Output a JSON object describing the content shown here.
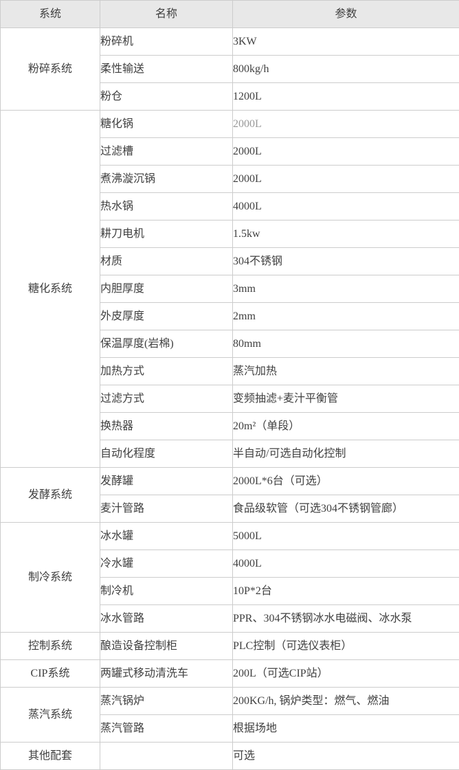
{
  "colors": {
    "header_bg": "#e8e8e8",
    "stripe_bg": "#efefef",
    "row_bg": "#ffffff",
    "border": "#cccccc",
    "text": "#404040",
    "muted_text": "#999999"
  },
  "table": {
    "headers": [
      "系统",
      "名称",
      "参数"
    ],
    "groups": [
      {
        "system": "粉碎系统",
        "cell_bg": "white",
        "rows": [
          {
            "name": "粉碎机",
            "param": "3KW"
          },
          {
            "name": "柔性输送",
            "param": "800kg/h"
          },
          {
            "name": "粉仓",
            "param": "1200L"
          }
        ]
      },
      {
        "system": "糖化系统",
        "cell_bg": "gray",
        "rows": [
          {
            "name": "糖化锅",
            "param": "2000L",
            "muted": true
          },
          {
            "name": "过滤槽",
            "param": "2000L"
          },
          {
            "name": "煮沸漩沉锅",
            "param": "2000L"
          },
          {
            "name": "热水锅",
            "param": "4000L"
          },
          {
            "name": "耕刀电机",
            "param": "1.5kw"
          },
          {
            "name": "材质",
            "param": "304不锈钢"
          },
          {
            "name": "内胆厚度",
            "param": "3mm"
          },
          {
            "name": "外皮厚度",
            "param": "2mm"
          },
          {
            "name": "保温厚度(岩棉)",
            "param": "80mm"
          },
          {
            "name": "加热方式",
            "param": "蒸汽加热"
          },
          {
            "name": "过滤方式",
            "param": "变频抽滤+麦汁平衡管"
          },
          {
            "name": "换热器",
            "param": "20m²（单段）"
          },
          {
            "name": "自动化程度",
            "param": "半自动/可选自动化控制"
          }
        ]
      },
      {
        "system": "发酵系统",
        "cell_bg": "white",
        "rows": [
          {
            "name": "发酵罐",
            "param": "2000L*6台（可选）"
          },
          {
            "name": "麦汁管路",
            "param": "食品级软管（可选304不锈钢管廊）"
          }
        ]
      },
      {
        "system": "制冷系统",
        "cell_bg": "gray",
        "align_top": true,
        "rows": [
          {
            "name": "冰水罐",
            "param": "5000L"
          },
          {
            "name": "冷水罐",
            "param": "4000L"
          },
          {
            "name": "制冷机",
            "param": "10P*2台"
          },
          {
            "name": "冰水管路",
            "param": "PPR、304不锈钢冰水电磁阀、冰水泵"
          }
        ]
      },
      {
        "system": "控制系统",
        "cell_bg": "white",
        "rows": [
          {
            "name": "酿造设备控制柜",
            "param": "PLC控制（可选仪表柜）"
          }
        ]
      },
      {
        "system": "CIP系统",
        "cell_bg": "gray",
        "rows": [
          {
            "name": "两罐式移动清洗车",
            "param": "200L（可选CIP站）"
          }
        ]
      },
      {
        "system": "蒸汽系统",
        "cell_bg": "white",
        "rows": [
          {
            "name": "蒸汽锅炉",
            "param": "200KG/h, 锅炉类型：燃气、燃油"
          },
          {
            "name": "蒸汽管路",
            "param": "根据场地"
          }
        ]
      },
      {
        "system": "其他配套",
        "cell_bg": "white",
        "rows": [
          {
            "name": "",
            "param": "可选"
          }
        ]
      }
    ]
  }
}
